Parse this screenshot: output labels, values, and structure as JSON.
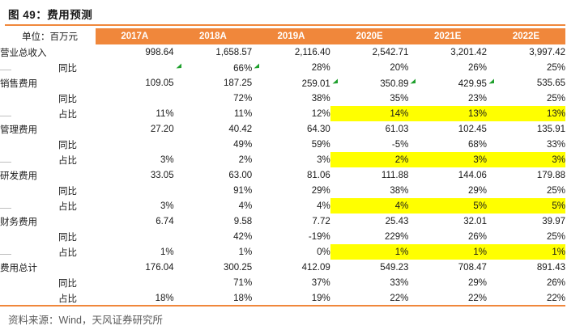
{
  "figure": {
    "title": "图 49：费用预测",
    "source": "资料来源：Wind，天风证券研究所"
  },
  "colors": {
    "accent_orange": "#F0873B",
    "highlight_yellow": "#FFFF00",
    "flag_green": "#1FA02D",
    "text_dark": "#1a1a1a",
    "source_gray": "#595959",
    "tick_gray": "#bfbfbf"
  },
  "table": {
    "unit_label": "单位：百万元",
    "columns": [
      "2017A",
      "2018A",
      "2019A",
      "2020E",
      "2021E",
      "2022E"
    ],
    "rows": [
      {
        "label": "营业总收入",
        "indent": false,
        "tick": false,
        "values": [
          "998.64",
          "1,658.57",
          "2,116.40",
          "2,542.71",
          "3,201.42",
          "3,997.42"
        ],
        "highlight": [],
        "flags": []
      },
      {
        "label": "同比",
        "indent": true,
        "tick": false,
        "values": [
          "",
          "66%",
          "28%",
          "20%",
          "26%",
          "25%"
        ],
        "highlight": [],
        "flags": [
          0,
          1
        ]
      },
      {
        "label": "销售费用",
        "indent": false,
        "tick": true,
        "values": [
          "109.05",
          "187.25",
          "259.01",
          "350.89",
          "429.95",
          "535.65"
        ],
        "highlight": [],
        "flags": [
          2,
          3,
          4
        ]
      },
      {
        "label": "同比",
        "indent": true,
        "tick": false,
        "values": [
          "",
          "72%",
          "38%",
          "35%",
          "23%",
          "25%"
        ],
        "highlight": [],
        "flags": []
      },
      {
        "label": "占比",
        "indent": true,
        "tick": false,
        "values": [
          "11%",
          "11%",
          "12%",
          "14%",
          "13%",
          "13%"
        ],
        "highlight": [
          3,
          4,
          5
        ],
        "flags": []
      },
      {
        "label": "管理费用",
        "indent": false,
        "tick": true,
        "values": [
          "27.20",
          "40.42",
          "64.30",
          "61.03",
          "102.45",
          "135.91"
        ],
        "highlight": [],
        "flags": []
      },
      {
        "label": "同比",
        "indent": true,
        "tick": false,
        "values": [
          "",
          "49%",
          "59%",
          "-5%",
          "68%",
          "33%"
        ],
        "highlight": [],
        "flags": []
      },
      {
        "label": "占比",
        "indent": true,
        "tick": false,
        "values": [
          "3%",
          "2%",
          "3%",
          "2%",
          "3%",
          "3%"
        ],
        "highlight": [
          3,
          4,
          5
        ],
        "flags": []
      },
      {
        "label": "研发费用",
        "indent": false,
        "tick": true,
        "values": [
          "33.05",
          "63.00",
          "81.06",
          "111.88",
          "144.06",
          "179.88"
        ],
        "highlight": [],
        "flags": []
      },
      {
        "label": "同比",
        "indent": true,
        "tick": false,
        "values": [
          "",
          "91%",
          "29%",
          "38%",
          "29%",
          "25%"
        ],
        "highlight": [],
        "flags": []
      },
      {
        "label": "占比",
        "indent": true,
        "tick": false,
        "values": [
          "3%",
          "4%",
          "4%",
          "4%",
          "5%",
          "5%"
        ],
        "highlight": [
          3,
          4,
          5
        ],
        "flags": []
      },
      {
        "label": "财务费用",
        "indent": false,
        "tick": true,
        "values": [
          "6.74",
          "9.58",
          "7.72",
          "25.43",
          "32.01",
          "39.97"
        ],
        "highlight": [],
        "flags": []
      },
      {
        "label": "同比",
        "indent": true,
        "tick": false,
        "values": [
          "",
          "42%",
          "-19%",
          "229%",
          "26%",
          "25%"
        ],
        "highlight": [],
        "flags": []
      },
      {
        "label": "占比",
        "indent": true,
        "tick": false,
        "values": [
          "1%",
          "1%",
          "0%",
          "1%",
          "1%",
          "1%"
        ],
        "highlight": [
          3,
          4,
          5
        ],
        "flags": []
      },
      {
        "label": "费用总计",
        "indent": false,
        "tick": true,
        "values": [
          "176.04",
          "300.25",
          "412.09",
          "549.23",
          "708.47",
          "891.43"
        ],
        "highlight": [],
        "flags": []
      },
      {
        "label": "同比",
        "indent": true,
        "tick": false,
        "values": [
          "",
          "71%",
          "37%",
          "33%",
          "29%",
          "26%"
        ],
        "highlight": [],
        "flags": []
      },
      {
        "label": "占比",
        "indent": true,
        "tick": false,
        "values": [
          "18%",
          "18%",
          "19%",
          "22%",
          "22%",
          "22%"
        ],
        "highlight": [],
        "flags": []
      }
    ]
  }
}
